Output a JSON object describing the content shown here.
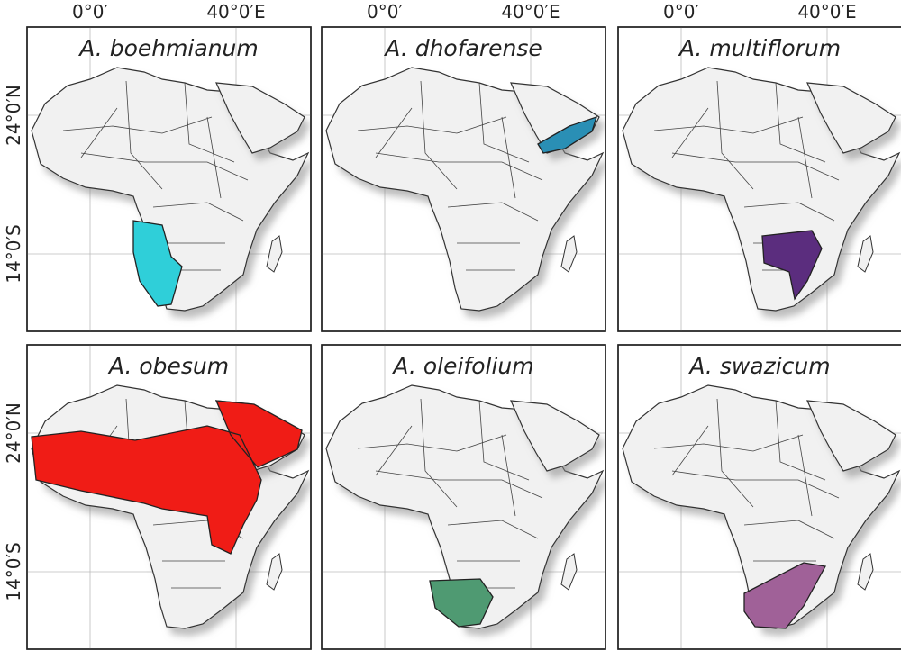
{
  "axis_labels": {
    "top": [
      "0°0′",
      "40°0′E"
    ],
    "left": [
      "24°0′N",
      "14°0′S"
    ]
  },
  "panels": [
    {
      "title": "A. boehmianum",
      "color": "#2fcfd9"
    },
    {
      "title": "A. dhofarense",
      "color": "#2a8fb5"
    },
    {
      "title": "A. multiflorum",
      "color": "#5b2d7e"
    },
    {
      "title": "A. obesum",
      "color": "#f01c16"
    },
    {
      "title": "A. oleifolium",
      "color": "#4f9a72"
    },
    {
      "title": "A. swazicum",
      "color": "#a06198"
    }
  ]
}
